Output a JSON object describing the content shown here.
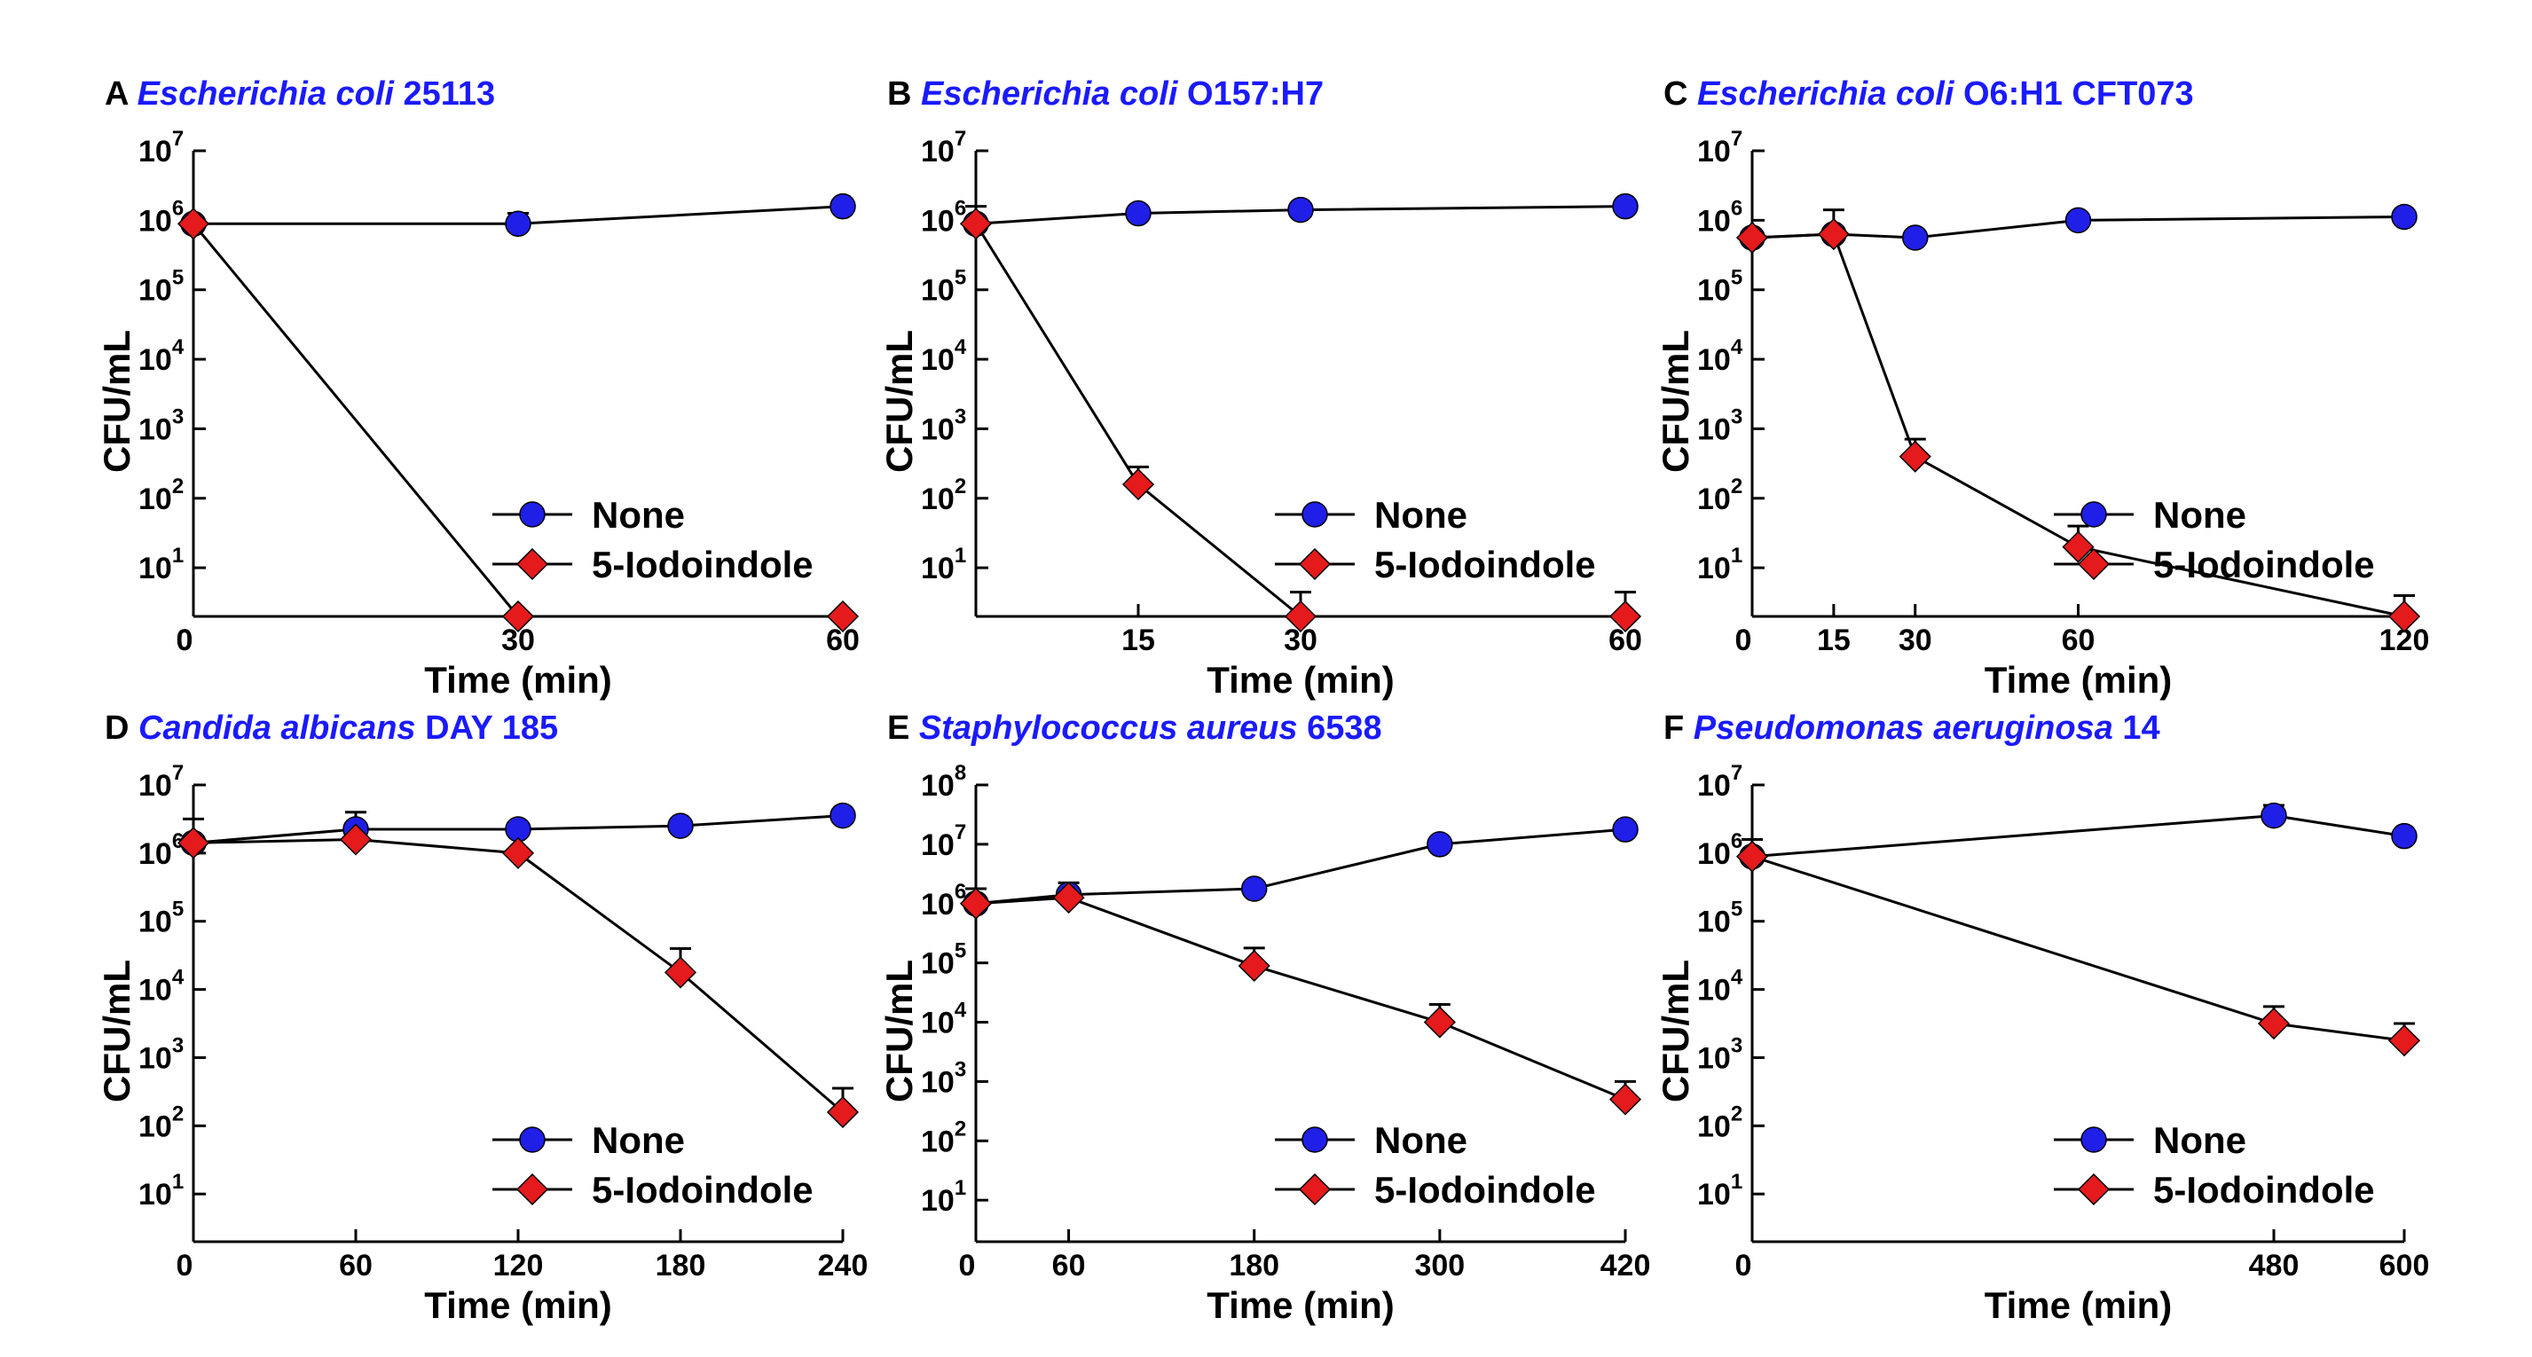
{
  "figure": {
    "panels": [
      "A",
      "B",
      "C",
      "D",
      "E",
      "F"
    ]
  },
  "colors": {
    "none_series": "#1f1fe8",
    "iodoindole_series": "#e41a1c",
    "title_blue": "#1a1aff",
    "axis": "#000000"
  },
  "chart_data": [
    {
      "type": "line",
      "panel": "A",
      "title_italic": "Escherichia coli",
      "title_rest": " 25113",
      "xlabel": "Time (min)",
      "ylabel": "CFU/mL",
      "xticks": [
        0,
        30,
        60
      ],
      "xlim": [
        0,
        60
      ],
      "ylim_log10": [
        0.3,
        7
      ],
      "yticks_exp": [
        1,
        2,
        3,
        4,
        5,
        6,
        7
      ],
      "x_zero_label": "0",
      "legend": [
        "None",
        "5-Iodoindole"
      ],
      "series": [
        {
          "name": "None",
          "marker": "circle",
          "x": [
            0,
            30,
            60
          ],
          "log10_y": [
            5.95,
            5.95,
            6.2
          ],
          "err": [
            0,
            0.15,
            0
          ]
        },
        {
          "name": "5-Iodoindole",
          "marker": "diamond",
          "x": [
            0,
            30,
            60
          ],
          "log10_y": [
            5.95,
            0.3,
            0.3
          ],
          "err": [
            0,
            0,
            0
          ]
        }
      ]
    },
    {
      "type": "line",
      "panel": "B",
      "title_italic": "Escherichia coli",
      "title_rest": " O157:H7",
      "xlabel": "Time (min)",
      "ylabel": "CFU/mL",
      "xticks": [
        15,
        30,
        60
      ],
      "xlim": [
        0,
        60
      ],
      "ylim_log10": [
        0.3,
        7
      ],
      "yticks_exp": [
        1,
        2,
        3,
        4,
        5,
        6,
        7
      ],
      "x_zero_label": "",
      "legend": [
        "None",
        "5-Iodoindole"
      ],
      "series": [
        {
          "name": "None",
          "marker": "circle",
          "x": [
            0,
            15,
            30,
            60
          ],
          "log10_y": [
            5.95,
            6.1,
            6.15,
            6.2
          ],
          "err": [
            0.25,
            0,
            0,
            0
          ]
        },
        {
          "name": "5-Iodoindole",
          "marker": "diamond",
          "x": [
            0,
            15,
            30,
            60
          ],
          "log10_y": [
            5.95,
            2.2,
            0.3,
            0.3
          ],
          "err": [
            0,
            0.25,
            0.35,
            0.35
          ]
        }
      ]
    },
    {
      "type": "line",
      "panel": "C",
      "title_italic": "Escherichia coli",
      "title_rest": " O6:H1 CFT073",
      "xlabel": "Time (min)",
      "ylabel": "CFU/mL",
      "xticks": [
        0,
        15,
        30,
        60,
        120
      ],
      "xlim": [
        0,
        120
      ],
      "ylim_log10": [
        0.3,
        7
      ],
      "yticks_exp": [
        1,
        2,
        3,
        4,
        5,
        6,
        7
      ],
      "x_zero_label": "",
      "legend": [
        "None",
        "5-Iodoindole"
      ],
      "series": [
        {
          "name": "None",
          "marker": "circle",
          "x": [
            0,
            15,
            30,
            60,
            120
          ],
          "log10_y": [
            5.75,
            5.8,
            5.75,
            6.0,
            6.05
          ],
          "err": [
            0,
            0,
            0,
            0,
            0
          ]
        },
        {
          "name": "5-Iodoindole",
          "marker": "diamond",
          "x": [
            0,
            15,
            30,
            60,
            120
          ],
          "log10_y": [
            5.75,
            5.8,
            2.6,
            1.3,
            0.3
          ],
          "err": [
            0,
            0.35,
            0.25,
            0.3,
            0.3
          ]
        }
      ]
    },
    {
      "type": "line",
      "panel": "D",
      "title_italic": "Candida albicans",
      "title_rest": " DAY 185",
      "xlabel": "Time (min)",
      "ylabel": "CFU/mL",
      "xticks": [
        0,
        60,
        120,
        180,
        240
      ],
      "xlim": [
        0,
        240
      ],
      "ylim_log10": [
        0.3,
        7
      ],
      "yticks_exp": [
        1,
        2,
        3,
        4,
        5,
        6,
        7
      ],
      "x_zero_label": "",
      "legend": [
        "None",
        "5-Iodoindole"
      ],
      "series": [
        {
          "name": "None",
          "marker": "circle",
          "x": [
            0,
            60,
            120,
            180,
            240
          ],
          "log10_y": [
            6.15,
            6.35,
            6.35,
            6.4,
            6.55
          ],
          "err": [
            0.35,
            0.25,
            0,
            0,
            0
          ]
        },
        {
          "name": "5-Iodoindole",
          "marker": "diamond",
          "x": [
            0,
            60,
            120,
            180,
            240
          ],
          "log10_y": [
            6.15,
            6.2,
            6.0,
            4.25,
            2.2
          ],
          "err": [
            0,
            0,
            0,
            0.35,
            0.35
          ]
        }
      ]
    },
    {
      "type": "line",
      "panel": "E",
      "title_italic": "Staphylococcus aureus",
      "title_rest": " 6538",
      "xlabel": "Time (min)",
      "ylabel": "CFU/mL",
      "xticks": [
        0,
        60,
        180,
        300,
        420
      ],
      "xlim": [
        0,
        420
      ],
      "ylim_log10": [
        0.3,
        8
      ],
      "yticks_exp": [
        1,
        2,
        3,
        4,
        5,
        6,
        7,
        8
      ],
      "x_zero_label": "",
      "legend": [
        "None",
        "5-Iodoindole"
      ],
      "series": [
        {
          "name": "None",
          "marker": "circle",
          "x": [
            0,
            60,
            180,
            300,
            420
          ],
          "log10_y": [
            6.0,
            6.15,
            6.25,
            7.0,
            7.25
          ],
          "err": [
            0.25,
            0.2,
            0,
            0,
            0
          ]
        },
        {
          "name": "5-Iodoindole",
          "marker": "diamond",
          "x": [
            0,
            60,
            180,
            300,
            420
          ],
          "log10_y": [
            6.0,
            6.1,
            4.95,
            4.0,
            2.7
          ],
          "err": [
            0,
            0,
            0.3,
            0.3,
            0.3
          ]
        }
      ]
    },
    {
      "type": "line",
      "panel": "F",
      "title_italic": "Pseudomonas aeruginosa",
      "title_rest": " 14",
      "xlabel": "Time (min)",
      "ylabel": "CFU/mL",
      "xticks": [
        0,
        480,
        600
      ],
      "xlim": [
        0,
        600
      ],
      "ylim_log10": [
        0.3,
        7
      ],
      "yticks_exp": [
        1,
        2,
        3,
        4,
        5,
        6,
        7
      ],
      "x_zero_label": "",
      "legend": [
        "None",
        "5-Iodoindole"
      ],
      "series": [
        {
          "name": "None",
          "marker": "circle",
          "x": [
            0,
            480,
            600
          ],
          "log10_y": [
            5.95,
            6.55,
            6.25
          ],
          "err": [
            0.25,
            0.15,
            0
          ]
        },
        {
          "name": "5-Iodoindole",
          "marker": "diamond",
          "x": [
            0,
            480,
            600
          ],
          "log10_y": [
            5.95,
            3.5,
            3.25
          ],
          "err": [
            0,
            0.25,
            0.25
          ]
        }
      ]
    }
  ]
}
